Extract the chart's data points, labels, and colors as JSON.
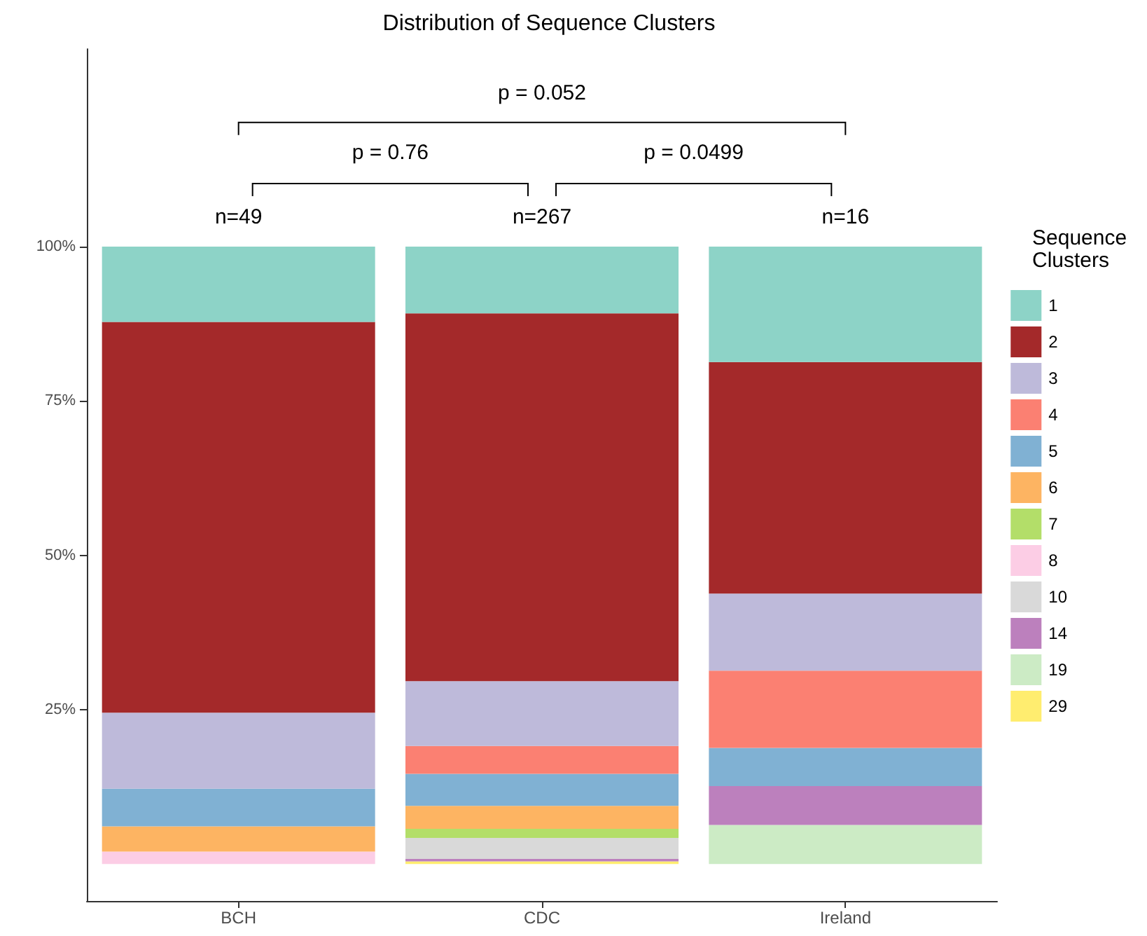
{
  "chart_data": {
    "type": "bar",
    "title": "Distribution of Sequence Clusters",
    "legend_title": "Sequence Clusters",
    "categories": [
      "BCH",
      "CDC",
      "Ireland"
    ],
    "stacked": true,
    "ylim": [
      -6,
      132
    ],
    "yticks": [
      {
        "value": 25,
        "label": "25%"
      },
      {
        "value": 50,
        "label": "50%"
      },
      {
        "value": 75,
        "label": "75%"
      },
      {
        "value": 100,
        "label": "100%"
      }
    ],
    "grid": false,
    "legend": "right",
    "annotations": [
      "n=49",
      "n=267",
      "n=16",
      "p = 0.76",
      "p = 0.0499",
      "p = 0.052"
    ],
    "series": [
      {
        "name": "29",
        "color": "#ffed6f",
        "values": [
          0,
          0.4,
          0
        ]
      },
      {
        "name": "19",
        "color": "#ccebc5",
        "values": [
          0,
          0,
          6.3
        ]
      },
      {
        "name": "14",
        "color": "#bc80bd",
        "values": [
          0,
          0.4,
          6.3
        ]
      },
      {
        "name": "10",
        "color": "#d9d9d9",
        "values": [
          0,
          3.4,
          0
        ]
      },
      {
        "name": "8",
        "color": "#fccde5",
        "values": [
          2,
          0,
          0
        ]
      },
      {
        "name": "7",
        "color": "#b3de69",
        "values": [
          0,
          1.5,
          0
        ]
      },
      {
        "name": "6",
        "color": "#fdb462",
        "values": [
          4.1,
          3.7,
          0
        ]
      },
      {
        "name": "5",
        "color": "#80b1d3",
        "values": [
          6.1,
          5.2,
          6.2
        ]
      },
      {
        "name": "4",
        "color": "#fb8072",
        "values": [
          0,
          4.5,
          12.5
        ]
      },
      {
        "name": "3",
        "color": "#bebada",
        "values": [
          12.3,
          10.5,
          12.5
        ]
      },
      {
        "name": "2",
        "color": "#a4292a",
        "values": [
          63.3,
          59.6,
          37.5
        ]
      },
      {
        "name": "1",
        "color": "#8dd3c7",
        "values": [
          12.2,
          10.8,
          18.7
        ]
      }
    ]
  }
}
